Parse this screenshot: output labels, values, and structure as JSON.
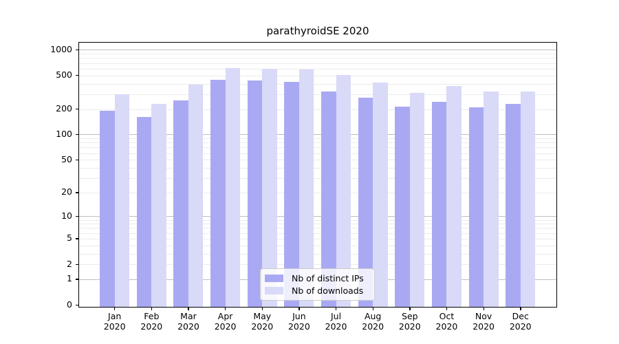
{
  "chart_data": {
    "type": "bar",
    "title": "parathyroidSE 2020",
    "categories": [
      "Jan",
      "Feb",
      "Mar",
      "Apr",
      "May",
      "Jun",
      "Jul",
      "Aug",
      "Sep",
      "Oct",
      "Nov",
      "Dec"
    ],
    "category_year": "2020",
    "series": [
      {
        "name": "Nb of distinct IPs",
        "color": "#a9a9f3",
        "values": [
          192,
          162,
          253,
          444,
          436,
          422,
          325,
          272,
          212,
          246,
          208,
          230
        ]
      },
      {
        "name": "Nb of downloads",
        "color": "#d9d9f8",
        "values": [
          300,
          230,
          392,
          610,
          602,
          591,
          503,
          410,
          312,
          378,
          320,
          325
        ]
      }
    ],
    "xlabel": "",
    "ylabel": "",
    "y_axis": {
      "scale": "log1p",
      "ylim": [
        0,
        1240
      ],
      "tick_values": [
        1000,
        500,
        200,
        100,
        50,
        20,
        10,
        5,
        2,
        1,
        0
      ],
      "tick_labels": [
        "1000",
        "500",
        "200",
        "100",
        "50",
        "20",
        "10",
        "5",
        "2",
        "1",
        "0"
      ],
      "major_grid_values": [
        1,
        10,
        100,
        1000
      ],
      "minor_grid_values": [
        2,
        3,
        4,
        5,
        6,
        7,
        8,
        9,
        20,
        30,
        40,
        50,
        60,
        70,
        80,
        90,
        200,
        300,
        400,
        500,
        600,
        700,
        800,
        900
      ]
    },
    "grid": true,
    "legend_position": "lower-center"
  },
  "colors": {
    "major_grid": "#bdbdbd",
    "minor_grid": "#ebebeb",
    "axis": "#000000",
    "legend_border": "#cccccc"
  }
}
